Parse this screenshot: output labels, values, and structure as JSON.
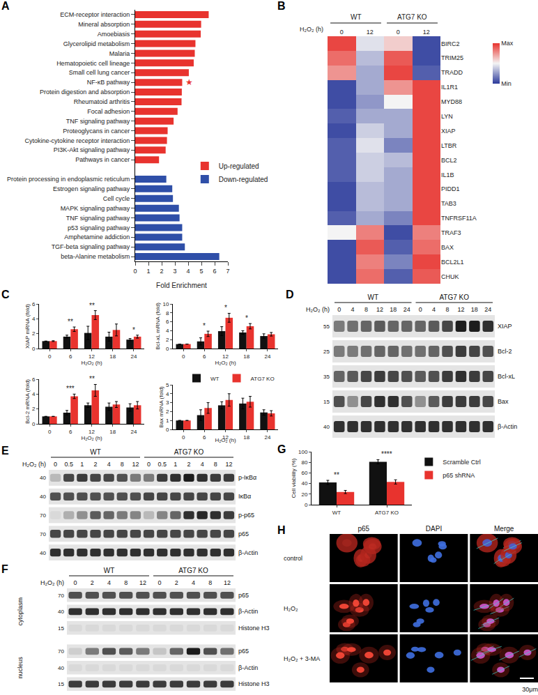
{
  "chart_data": [
    {
      "type": "bar",
      "panel": "A",
      "orientation": "horizontal",
      "legend": "lower right",
      "grid": false,
      "x_label": "Fold Enrichment",
      "xlim": [
        0,
        7
      ],
      "xticks": [
        0,
        1,
        2,
        3,
        4,
        5,
        6,
        7
      ],
      "categories": [
        "ECM-receptor interaction",
        "Mineral absorption",
        "Amoebiasis",
        "Glycerolipid metabolism",
        "Malaria",
        "Hematopoietic cell lineage",
        "Small cell lung cancer",
        "NF-κB pathway",
        "Protein digestion and absorption",
        "Rheumatoid arthritis",
        "Focal adhesion",
        "TNF signaling pathway",
        "Proteoglycans in cancer",
        "Cytokine-cytokine receptor interaction",
        "PI3K-Akt signaling pathway",
        "Pathways in cancer",
        null,
        "Protein processing in endoplasmic reticulum",
        "Estrogen signaling pathway",
        "Cell cycle",
        "MAPK signaling pathway",
        "TNF signaling pathway",
        "p53 signaling pathway",
        "Amphetamine addiction",
        "TGF-beta signaling pathway",
        "beta-Alanine metabolism"
      ],
      "series": [
        {
          "name": "Up-regulated",
          "color": "#e8332e",
          "values": [
            5.55,
            4.98,
            4.95,
            4.55,
            4.5,
            4.42,
            4.05,
            3.55,
            3.52,
            3.5,
            3.2,
            2.9,
            2.45,
            2.4,
            2.3,
            1.8,
            null,
            null,
            null,
            null,
            null,
            null,
            null,
            null,
            null,
            null
          ]
        },
        {
          "name": "Down-regulated",
          "color": "#2f4fa8",
          "values": [
            null,
            null,
            null,
            null,
            null,
            null,
            null,
            null,
            null,
            null,
            null,
            null,
            null,
            null,
            null,
            null,
            null,
            2.35,
            2.8,
            2.85,
            3.3,
            3.35,
            3.55,
            3.55,
            3.75,
            6.35
          ]
        }
      ],
      "annotations": [
        {
          "category": "NF-κB pathway",
          "text": "★"
        }
      ]
    },
    {
      "type": "heatmap",
      "panel": "B",
      "x_title": "H₂O₂ (h)",
      "columns": [
        {
          "group": "WT",
          "label": "0"
        },
        {
          "group": "WT",
          "label": "12"
        },
        {
          "group": "ATG7 KO",
          "label": "0"
        },
        {
          "group": "ATG7 KO",
          "label": "12"
        }
      ],
      "rows": [
        "BIRC2",
        "TRIM25",
        "TRADD",
        "IL1R1",
        "MYD88",
        "LYN",
        "XIAP",
        "LTBR",
        "BCL2",
        "IL1B",
        "PIDD1",
        "TAB3",
        "TNFRSF11A",
        "TRAF3",
        "BAX",
        "BCL2L1",
        "CHUK"
      ],
      "values": [
        [
          0.95,
          0.45,
          0.6,
          0.05
        ],
        [
          0.85,
          0.35,
          0.9,
          0.05
        ],
        [
          0.75,
          0.3,
          0.95,
          0.1
        ],
        [
          0.05,
          0.3,
          0.75,
          0.95
        ],
        [
          0.05,
          0.25,
          0.5,
          0.95
        ],
        [
          0.1,
          0.3,
          0.3,
          0.95
        ],
        [
          0.05,
          0.4,
          0.3,
          0.95
        ],
        [
          0.1,
          0.45,
          0.2,
          0.95
        ],
        [
          0.1,
          0.4,
          0.35,
          0.95
        ],
        [
          0.1,
          0.4,
          0.3,
          0.95
        ],
        [
          0.05,
          0.35,
          0.3,
          0.95
        ],
        [
          0.05,
          0.35,
          0.3,
          0.95
        ],
        [
          0.1,
          0.3,
          0.2,
          0.95
        ],
        [
          0.5,
          0.8,
          0.05,
          0.8
        ],
        [
          0.05,
          0.9,
          0.1,
          0.85
        ],
        [
          0.05,
          0.8,
          0.2,
          0.95
        ],
        [
          0.05,
          0.85,
          0.1,
          0.9
        ]
      ],
      "colorbar": {
        "range": [
          0,
          1
        ],
        "ticks": [
          {
            "value": 1,
            "label": "Max"
          },
          {
            "value": 0,
            "label": "Min"
          }
        ]
      }
    },
    {
      "type": "bar",
      "panel": "C",
      "x_label": "H₂O₂ (h)",
      "y_label": "XIAP mRNA (fold)",
      "ylim": [
        0,
        6
      ],
      "yticks": [
        0,
        2,
        4,
        6
      ],
      "categories": [
        "0",
        "6",
        "12",
        "18",
        "24"
      ],
      "series": [
        {
          "name": "WT",
          "color": "#111111",
          "values": [
            1,
            1.6,
            2.1,
            1.6,
            1.2
          ],
          "errors": [
            0,
            0.2,
            0.9,
            0.6,
            0.15
          ]
        },
        {
          "name": "ATG7 KO",
          "color": "#e8332e",
          "values": [
            1,
            2.6,
            4.5,
            2.5,
            1.6
          ],
          "errors": [
            0.05,
            0.3,
            0.6,
            0.8,
            0.2
          ]
        }
      ],
      "significance": [
        {
          "category": "6",
          "label": "**"
        },
        {
          "category": "12",
          "label": "**"
        },
        {
          "category": "24",
          "label": "*"
        }
      ]
    },
    {
      "type": "bar",
      "x_label": "H₂O₂ (h)",
      "y_label": "Bcl-xL mRNA (fold)",
      "ylim": [
        0,
        10
      ],
      "yticks": [
        0,
        2,
        4,
        6,
        8,
        10
      ],
      "categories": [
        "0",
        "6",
        "12",
        "18",
        "24"
      ],
      "series": [
        {
          "name": "WT",
          "color": "#111111",
          "values": [
            1,
            1.6,
            3.9,
            3.6,
            2.8
          ],
          "errors": [
            0,
            0.8,
            1.0,
            0.4,
            0.5
          ]
        },
        {
          "name": "ATG7 KO",
          "color": "#e8332e",
          "values": [
            1,
            3.3,
            6.9,
            5.0,
            3.2
          ],
          "errors": [
            0,
            0.6,
            1.0,
            0.6,
            0.4
          ]
        }
      ],
      "significance": [
        {
          "category": "6",
          "label": "*"
        },
        {
          "category": "12",
          "label": "*"
        },
        {
          "category": "18",
          "label": "*"
        }
      ]
    },
    {
      "type": "bar",
      "x_label": "H₂O₂ (h)",
      "y_label": "Bcl-2 mRNA (fold)",
      "ylim": [
        0,
        6
      ],
      "yticks": [
        0,
        2,
        4,
        6
      ],
      "categories": [
        "0",
        "6",
        "12",
        "18",
        "24"
      ],
      "series": [
        {
          "name": "WT",
          "color": "#111111",
          "values": [
            1,
            1.5,
            2.5,
            2.3,
            2.2
          ],
          "errors": [
            0,
            0.3,
            0.3,
            0.5,
            0.5
          ]
        },
        {
          "name": "ATG7 KO",
          "color": "#e8332e",
          "values": [
            1,
            3.7,
            4.5,
            2.6,
            2.5
          ],
          "errors": [
            0,
            0.3,
            0.8,
            0.4,
            0.5
          ]
        }
      ],
      "significance": [
        {
          "category": "6",
          "label": "***"
        },
        {
          "category": "12",
          "label": "**"
        }
      ]
    },
    {
      "type": "bar",
      "legend": "top right",
      "x_label": "H₂O₂ (h)",
      "y_label": "Bax mRNA (fold)",
      "ylim": [
        0,
        5
      ],
      "yticks": [
        0,
        1,
        2,
        3,
        4,
        5
      ],
      "categories": [
        "0",
        "6",
        "12",
        "18",
        "24"
      ],
      "series": [
        {
          "name": "WT",
          "color": "#111111",
          "values": [
            1,
            1.6,
            2.7,
            2.9,
            1.9
          ],
          "errors": [
            0,
            0.6,
            0.4,
            0.6,
            0.3
          ]
        },
        {
          "name": "ATG7 KO",
          "color": "#e8332e",
          "values": [
            1,
            2.4,
            3.3,
            3.1,
            1.8
          ],
          "errors": [
            0,
            0.6,
            0.7,
            0.6,
            0.3
          ]
        }
      ],
      "significance": []
    },
    {
      "type": "bar",
      "panel": "G",
      "legend": "right",
      "y_label": "Cell viability (%)",
      "ylim": [
        0,
        100
      ],
      "yticks": [
        0,
        20,
        40,
        60,
        80,
        100
      ],
      "categories": [
        "WT",
        "ATG7 KO"
      ],
      "series": [
        {
          "name": "Scramble Ctrl",
          "color": "#111111",
          "values": [
            42,
            81
          ],
          "errors": [
            4,
            4
          ]
        },
        {
          "name": "p65 shRNA",
          "color": "#e8332e",
          "values": [
            24,
            43
          ],
          "errors": [
            3,
            4
          ]
        }
      ],
      "significance": [
        {
          "category": "WT",
          "label": "**"
        },
        {
          "category": "ATG7 KO",
          "label": "****"
        }
      ]
    }
  ],
  "blots": [
    {
      "panel": "D",
      "header": "H₂O₂ (h)",
      "groups": [
        {
          "label": "WT",
          "times": [
            "0",
            "4",
            "8",
            "12",
            "18",
            "24"
          ]
        },
        {
          "label": "ATG7 KO",
          "times": [
            "0",
            "4",
            "8",
            "12",
            "18",
            "24"
          ]
        }
      ],
      "rows": [
        {
          "label": "XIAP",
          "marker": 55,
          "intensity": [
            0.5,
            0.55,
            0.6,
            0.65,
            0.6,
            0.6,
            0.6,
            0.65,
            0.75,
            0.95,
            0.95,
            0.85
          ]
        },
        {
          "label": "Bcl-2",
          "marker": 25,
          "intensity": [
            0.5,
            0.5,
            0.55,
            0.6,
            0.6,
            0.55,
            0.55,
            0.6,
            0.7,
            0.8,
            0.75,
            0.7
          ]
        },
        {
          "label": "Bcl-xL",
          "marker": 35,
          "intensity": [
            0.6,
            0.65,
            0.75,
            0.8,
            0.75,
            0.7,
            0.65,
            0.7,
            0.8,
            0.85,
            0.8,
            0.75
          ]
        },
        {
          "label": "Bax",
          "marker": 15,
          "intensity": [
            0.7,
            0.4,
            0.75,
            0.85,
            0.85,
            0.7,
            0.4,
            0.65,
            0.8,
            0.8,
            0.8,
            0.75
          ]
        },
        {
          "label": "β-Actin",
          "marker": 40,
          "intensity": [
            0.85,
            0.85,
            0.85,
            0.85,
            0.85,
            0.85,
            0.85,
            0.85,
            0.85,
            0.85,
            0.85,
            0.85
          ]
        }
      ]
    },
    {
      "panel": "E",
      "header": "H₂O₂ (h)",
      "groups": [
        {
          "label": "WT",
          "times": [
            "0",
            "0.5",
            "1",
            "2",
            "4",
            "8",
            "12"
          ]
        },
        {
          "label": "ATG7 KO",
          "times": [
            "0",
            "0.5",
            "1",
            "2",
            "4",
            "8",
            "12"
          ]
        }
      ],
      "rows": [
        {
          "label": "p-IκBα",
          "marker": 40,
          "intensity": [
            0.2,
            0.75,
            0.8,
            0.75,
            0.75,
            0.7,
            0.5,
            0.5,
            0.8,
            0.85,
            0.95,
            0.85,
            0.8,
            0.8
          ]
        },
        {
          "label": "IκBα",
          "marker": 40,
          "intensity": [
            0.7,
            0.7,
            0.7,
            0.7,
            0.7,
            0.7,
            0.7,
            0.75,
            0.75,
            0.75,
            0.75,
            0.75,
            0.75,
            0.75
          ]
        },
        {
          "label": "p-p65",
          "marker": 70,
          "intensity": [
            0.05,
            0.25,
            0.4,
            0.65,
            0.6,
            0.5,
            0.45,
            0.2,
            0.45,
            0.6,
            0.85,
            0.9,
            0.85,
            0.8
          ]
        },
        {
          "label": "p65",
          "marker": 70,
          "intensity": [
            0.75,
            0.75,
            0.75,
            0.75,
            0.75,
            0.75,
            0.75,
            0.75,
            0.75,
            0.75,
            0.75,
            0.75,
            0.75,
            0.75
          ]
        },
        {
          "label": "β-Actin",
          "marker": 40,
          "intensity": [
            0.85,
            0.85,
            0.85,
            0.85,
            0.85,
            0.85,
            0.85,
            0.85,
            0.85,
            0.85,
            0.85,
            0.85,
            0.85,
            0.85
          ]
        }
      ]
    },
    {
      "panel": "F",
      "header": "H₂O₂ (h)",
      "groups": [
        {
          "label": "WT",
          "times": [
            "0",
            "2",
            "4",
            "8",
            "12"
          ]
        },
        {
          "label": "ATG7 KO",
          "times": [
            "0",
            "2",
            "4",
            "8",
            "12"
          ]
        }
      ],
      "sections": [
        {
          "label": "cytoplasm",
          "rows": [
            {
              "label": "p65",
              "marker": 70,
              "intensity": [
                0.7,
                0.7,
                0.7,
                0.7,
                0.7,
                0.7,
                0.7,
                0.7,
                0.7,
                0.7
              ]
            },
            {
              "label": "β-Actin",
              "marker": 40,
              "intensity": [
                0.85,
                0.85,
                0.85,
                0.85,
                0.85,
                0.85,
                0.85,
                0.85,
                0.85,
                0.85
              ]
            },
            {
              "label": "Histone H3",
              "marker": 15,
              "intensity": [
                0.05,
                0.05,
                0.05,
                0.05,
                0.05,
                0.05,
                0.05,
                0.05,
                0.05,
                0.05
              ]
            }
          ]
        },
        {
          "label": "nucleus",
          "rows": [
            {
              "label": "p65",
              "marker": 70,
              "intensity": [
                0.1,
                0.5,
                0.7,
                0.65,
                0.5,
                0.15,
                0.6,
                0.95,
                0.7,
                0.55
              ]
            },
            {
              "label": "β-Actin",
              "marker": 40,
              "intensity": [
                0.05,
                0.05,
                0.05,
                0.05,
                0.05,
                0.05,
                0.05,
                0.05,
                0.05,
                0.05
              ]
            },
            {
              "label": "Histone H3",
              "marker": 15,
              "intensity": [
                0.8,
                0.8,
                0.8,
                0.8,
                0.8,
                0.8,
                0.8,
                0.8,
                0.8,
                0.8
              ]
            }
          ]
        }
      ]
    }
  ],
  "images": {
    "panel": "H",
    "columns": [
      "p65",
      "DAPI",
      "Merge"
    ],
    "rows": [
      "control",
      "H₂O₂",
      "H₂O₂ + 3-MA"
    ],
    "scale_bar": "30μm"
  }
}
